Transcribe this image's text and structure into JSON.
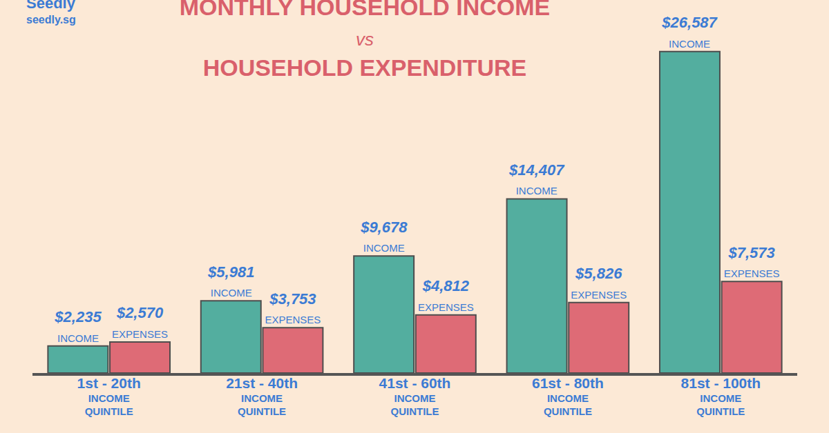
{
  "chart_data": {
    "type": "bar",
    "title": "MONTHLY HOUSEHOLD INCOME\nvs\nHOUSEHOLD EXPENDITURE",
    "annotations": [
      "Seedly",
      "seedly.sg"
    ],
    "categories": [
      "1st - 20th\nINCOME\nQUINTILE",
      "21st - 40th\nINCOME\nQUINTILE",
      "41st - 60th\nINCOME\nQUINTILE",
      "61st - 80th\nINCOME\nQUINTILE",
      "81st - 100th\nINCOME\nQUINTILE"
    ],
    "series": [
      {
        "name": "INCOME",
        "color": "#53ae9f",
        "values": [
          2235,
          5981,
          9678,
          14407,
          26587
        ],
        "value_labels": [
          "$2,235",
          "$5,981",
          "$9,678",
          "$14,407",
          "$26,587"
        ]
      },
      {
        "name": "EXPENSES",
        "color": "#de6b76",
        "values": [
          2570,
          3753,
          4812,
          5826,
          7573
        ],
        "value_labels": [
          "$2,570",
          "$3,753",
          "$4,812",
          "$5,826",
          "$7,573"
        ]
      }
    ],
    "ylim": [
      0,
      30000
    ],
    "data_labels": true,
    "tick_labels": "x",
    "grid": false
  }
}
